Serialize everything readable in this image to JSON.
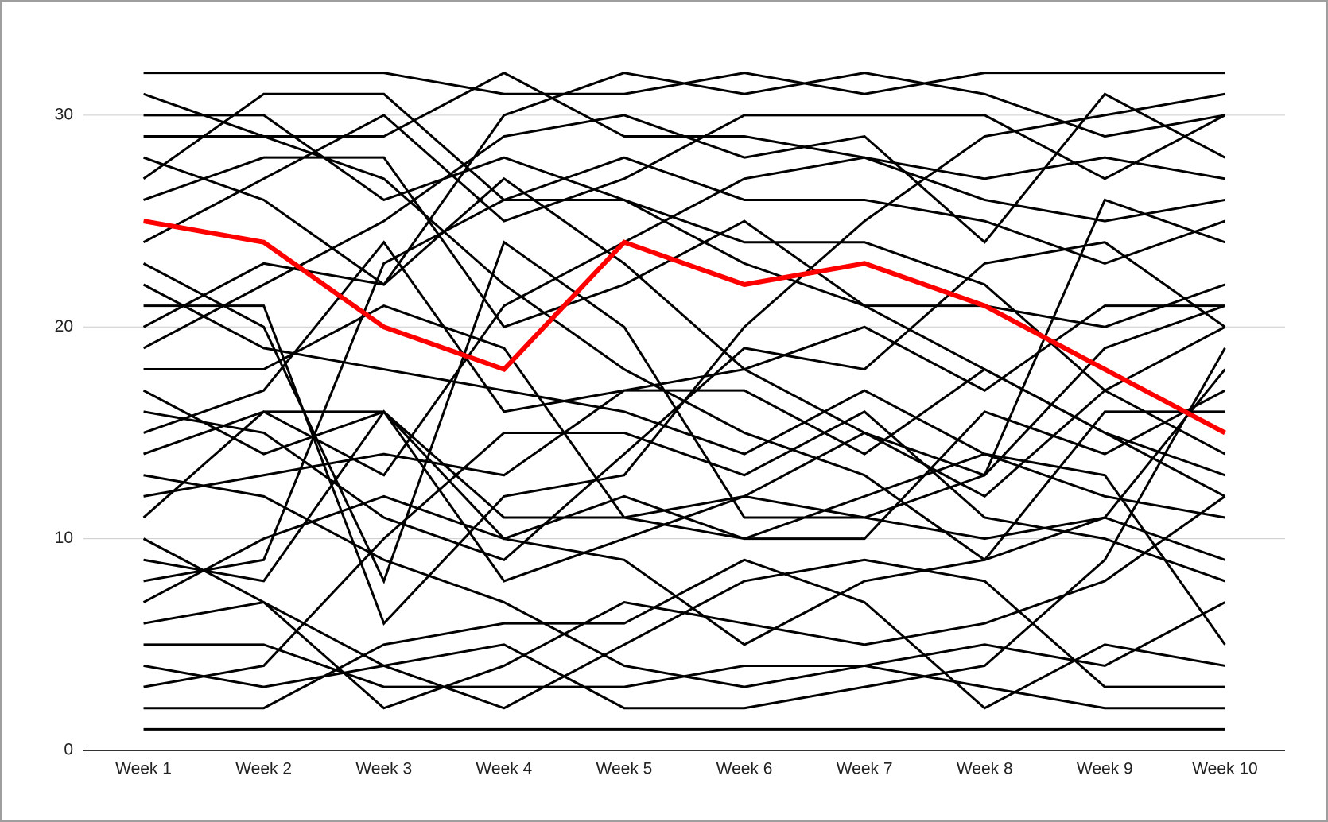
{
  "chart_data": {
    "type": "line",
    "categories": [
      "Week 1",
      "Week 2",
      "Week 3",
      "Week 4",
      "Week 5",
      "Week 6",
      "Week 7",
      "Week 8",
      "Week 9",
      "Week 10"
    ],
    "ylim": [
      0,
      33
    ],
    "yticks": [
      0,
      10,
      20,
      30
    ],
    "grid": true,
    "series": [
      {
        "color": "#000000",
        "values": [
          32,
          32,
          32,
          31,
          31,
          32,
          31,
          32,
          32,
          32
        ]
      },
      {
        "color": "#000000",
        "values": [
          31,
          29,
          27,
          22,
          18,
          15,
          13,
          9,
          11,
          18
        ]
      },
      {
        "color": "#000000",
        "values": [
          30,
          30,
          26,
          28,
          26,
          23,
          21,
          21,
          20,
          22
        ]
      },
      {
        "color": "#000000",
        "values": [
          29,
          29,
          29,
          32,
          29,
          29,
          28,
          27,
          28,
          27
        ]
      },
      {
        "color": "#000000",
        "values": [
          28,
          26,
          22,
          27,
          23,
          18,
          15,
          12,
          17,
          20
        ]
      },
      {
        "color": "#000000",
        "values": [
          27,
          31,
          31,
          26,
          26,
          24,
          24,
          22,
          17,
          14
        ]
      },
      {
        "color": "#000000",
        "values": [
          26,
          28,
          28,
          20,
          22,
          25,
          21,
          18,
          15,
          13
        ]
      },
      {
        "color": "#000000",
        "values": [
          24,
          27,
          30,
          25,
          27,
          30,
          30,
          30,
          27,
          30
        ]
      },
      {
        "color": "#000000",
        "values": [
          23,
          20,
          8,
          24,
          20,
          11,
          11,
          10,
          11,
          9
        ]
      },
      {
        "color": "#000000",
        "values": [
          22,
          19,
          18,
          17,
          16,
          14,
          17,
          14,
          12,
          11
        ]
      },
      {
        "color": "#000000",
        "values": [
          21,
          21,
          6,
          12,
          13,
          20,
          25,
          29,
          30,
          31
        ]
      },
      {
        "color": "#000000",
        "values": [
          20,
          23,
          22,
          30,
          32,
          31,
          32,
          31,
          29,
          30
        ]
      },
      {
        "color": "#000000",
        "values": [
          19,
          22,
          25,
          29,
          30,
          28,
          29,
          24,
          31,
          28
        ]
      },
      {
        "color": "#000000",
        "values": [
          18,
          18,
          21,
          19,
          11,
          10,
          12,
          14,
          13,
          5
        ]
      },
      {
        "color": "#000000",
        "values": [
          17,
          14,
          16,
          10,
          12,
          10,
          10,
          16,
          14,
          17
        ]
      },
      {
        "color": "#000000",
        "values": [
          16,
          15,
          11,
          9,
          14,
          19,
          18,
          23,
          24,
          20
        ]
      },
      {
        "color": "#000000",
        "values": [
          15,
          17,
          24,
          16,
          17,
          17,
          14,
          18,
          15,
          12
        ]
      },
      {
        "color": "#000000",
        "values": [
          14,
          16,
          16,
          11,
          11,
          12,
          15,
          13,
          19,
          21
        ]
      },
      {
        "color": "#000000",
        "values": [
          13,
          12,
          9,
          7,
          4,
          3,
          4,
          5,
          4,
          7
        ]
      },
      {
        "color": "#000000",
        "values": [
          12,
          13,
          14,
          13,
          17,
          18,
          20,
          17,
          21,
          21
        ]
      },
      {
        "color": "#000000",
        "values": [
          11,
          16,
          13,
          21,
          24,
          27,
          28,
          26,
          25,
          26
        ]
      },
      {
        "color": "#000000",
        "values": [
          10,
          7,
          4,
          5,
          2,
          2,
          3,
          4,
          9,
          19
        ]
      },
      {
        "color": "#000000",
        "values": [
          9,
          8,
          16,
          8,
          10,
          12,
          11,
          13,
          26,
          24
        ]
      },
      {
        "color": "#000000",
        "values": [
          8,
          9,
          23,
          26,
          28,
          26,
          26,
          25,
          23,
          25
        ]
      },
      {
        "color": "#000000",
        "values": [
          7,
          10,
          12,
          10,
          9,
          5,
          8,
          9,
          16,
          16
        ]
      },
      {
        "color": "#000000",
        "values": [
          6,
          7,
          2,
          4,
          7,
          6,
          5,
          6,
          8,
          12
        ]
      },
      {
        "color": "#000000",
        "values": [
          5,
          5,
          3,
          3,
          3,
          4,
          4,
          3,
          2,
          2
        ]
      },
      {
        "color": "#000000",
        "values": [
          4,
          3,
          4,
          2,
          5,
          8,
          9,
          8,
          3,
          3
        ]
      },
      {
        "color": "#000000",
        "values": [
          3,
          4,
          10,
          15,
          15,
          13,
          16,
          11,
          10,
          8
        ]
      },
      {
        "color": "#000000",
        "values": [
          2,
          2,
          5,
          6,
          6,
          9,
          7,
          2,
          5,
          4
        ]
      },
      {
        "color": "#000000",
        "values": [
          1,
          1,
          1,
          1,
          1,
          1,
          1,
          1,
          1,
          1
        ]
      },
      {
        "color": "#ff0000",
        "values": [
          25,
          24,
          20,
          18,
          24,
          22,
          23,
          21,
          18,
          15
        ]
      }
    ]
  }
}
